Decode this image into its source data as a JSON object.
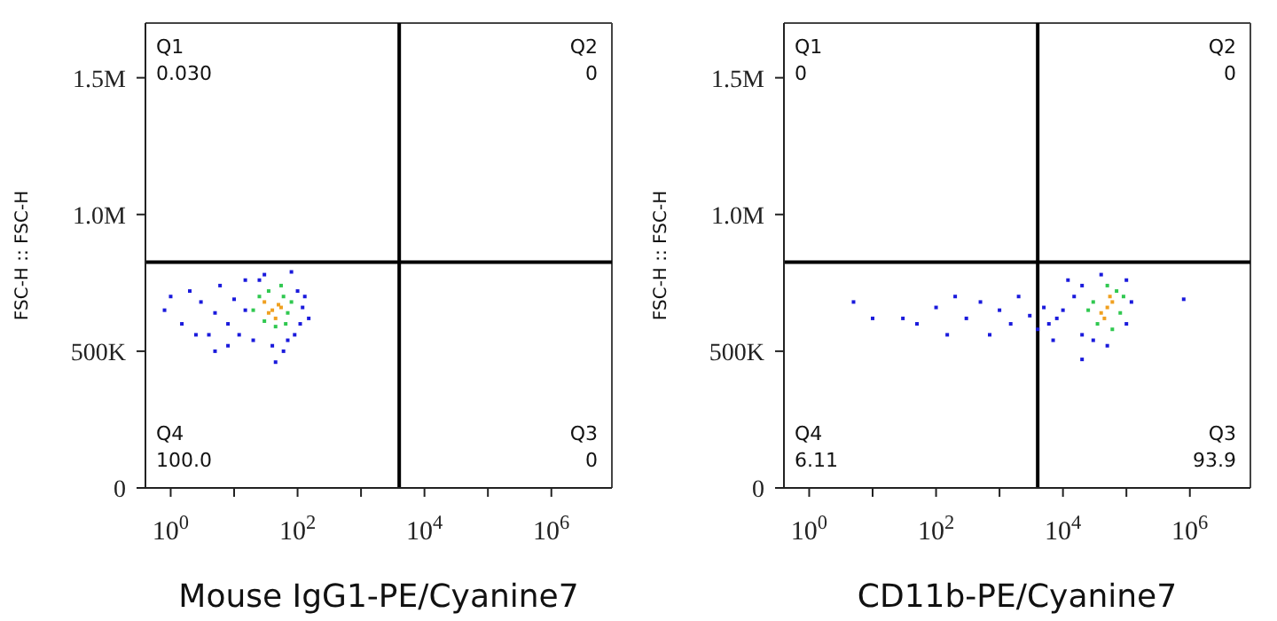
{
  "chart_data": [
    {
      "type": "scatter",
      "xlabel": "Mouse IgG1-PE/Cyanine7",
      "ylabel": "FSC-H :: FSC-H",
      "log": "x",
      "marker": "square",
      "xlim": [
        0.4,
        9000000
      ],
      "xticks": [
        {
          "value": 1,
          "label": "10$^{0}$"
        },
        {
          "value": 10,
          "label": null
        },
        {
          "value": 100,
          "label": "10$^{2}$"
        },
        {
          "value": 1000,
          "label": null
        },
        {
          "value": 10000,
          "label": "10$^{4}$"
        },
        {
          "value": 100000,
          "label": null
        },
        {
          "value": 1000000,
          "label": "10$^{6}$"
        }
      ],
      "ylim": [
        0,
        1700000
      ],
      "yticks": [
        {
          "value": 0,
          "label": "0"
        },
        {
          "value": 500000,
          "label": "500K"
        },
        {
          "value": 1000000,
          "label": "1.0M"
        },
        {
          "value": 1500000,
          "label": "1.5M"
        }
      ],
      "ref_lines": [
        {
          "axis": "x",
          "value": 4000,
          "color": "#000000"
        },
        {
          "axis": "y",
          "value": 826000,
          "color": "#000000"
        }
      ],
      "annotations": [
        "Q1",
        "0.030",
        "Q2",
        "0",
        "Q4",
        "100.0",
        "Q3",
        "0"
      ],
      "series": [
        {
          "color": "#1a1adc",
          "x": [
            1,
            0.8,
            1.5,
            2,
            3,
            4,
            5,
            6,
            8,
            10,
            12,
            15,
            8,
            20,
            25,
            100,
            110,
            90,
            120,
            70,
            40,
            60,
            30,
            80,
            15,
            2.5,
            5,
            45,
            150,
            130
          ],
          "values": [
            700000,
            650000,
            600000,
            720000,
            680000,
            560000,
            640000,
            740000,
            600000,
            690000,
            560000,
            760000,
            520000,
            540000,
            760000,
            720000,
            600000,
            560000,
            660000,
            540000,
            520000,
            500000,
            780000,
            790000,
            650000,
            560000,
            500000,
            460000,
            620000,
            700000
          ]
        },
        {
          "color": "#30c850",
          "x": [
            25,
            60,
            70,
            30,
            45,
            80,
            20,
            65,
            35,
            55
          ],
          "values": [
            700000,
            700000,
            640000,
            610000,
            590000,
            680000,
            650000,
            600000,
            720000,
            740000
          ]
        },
        {
          "color": "#f0a020",
          "x": [
            40,
            50,
            35,
            45,
            55,
            30
          ],
          "values": [
            650000,
            670000,
            640000,
            620000,
            660000,
            680000
          ]
        }
      ]
    },
    {
      "type": "scatter",
      "xlabel": "CD11b-PE/Cyanine7",
      "ylabel": "FSC-H :: FSC-H",
      "log": "x",
      "marker": "square",
      "xlim": [
        0.4,
        9000000
      ],
      "xticks": [
        {
          "value": 1,
          "label": "10$^{0}$"
        },
        {
          "value": 10,
          "label": null
        },
        {
          "value": 100,
          "label": "10$^{2}$"
        },
        {
          "value": 1000,
          "label": null
        },
        {
          "value": 10000,
          "label": "10$^{4}$"
        },
        {
          "value": 100000,
          "label": null
        },
        {
          "value": 1000000,
          "label": "10$^{6}$"
        }
      ],
      "ylim": [
        0,
        1700000
      ],
      "yticks": [
        {
          "value": 0,
          "label": "0"
        },
        {
          "value": 500000,
          "label": "500K"
        },
        {
          "value": 1000000,
          "label": "1.0M"
        },
        {
          "value": 1500000,
          "label": "1.5M"
        }
      ],
      "ref_lines": [
        {
          "axis": "x",
          "value": 4000,
          "color": "#000000"
        },
        {
          "axis": "y",
          "value": 826000,
          "color": "#000000"
        }
      ],
      "annotations": [
        "Q1",
        "0",
        "Q2",
        "0",
        "Q4",
        "6.11",
        "Q3",
        "93.9"
      ],
      "series": [
        {
          "color": "#1a1adc",
          "x": [
            10000,
            8000,
            15000,
            20000,
            12000,
            20000,
            30000,
            100000,
            120000,
            100000,
            6000,
            5000,
            4000,
            3000,
            2000,
            1500,
            1000,
            700,
            500,
            300,
            200,
            150,
            100,
            50,
            30,
            800000,
            5,
            10,
            20000,
            50000,
            7000,
            40000
          ],
          "values": [
            650000,
            620000,
            700000,
            560000,
            760000,
            740000,
            540000,
            600000,
            680000,
            760000,
            600000,
            660000,
            580000,
            630000,
            700000,
            600000,
            650000,
            560000,
            680000,
            620000,
            700000,
            560000,
            660000,
            600000,
            620000,
            690000,
            680000,
            620000,
            470000,
            520000,
            540000,
            780000
          ]
        },
        {
          "color": "#30c850",
          "x": [
            30000,
            70000,
            80000,
            35000,
            60000,
            90000,
            25000,
            50000
          ],
          "values": [
            680000,
            720000,
            640000,
            600000,
            580000,
            700000,
            650000,
            740000
          ]
        },
        {
          "color": "#f0a020",
          "x": [
            50000,
            60000,
            40000,
            55000,
            45000
          ],
          "values": [
            660000,
            680000,
            640000,
            700000,
            620000
          ]
        }
      ]
    }
  ]
}
